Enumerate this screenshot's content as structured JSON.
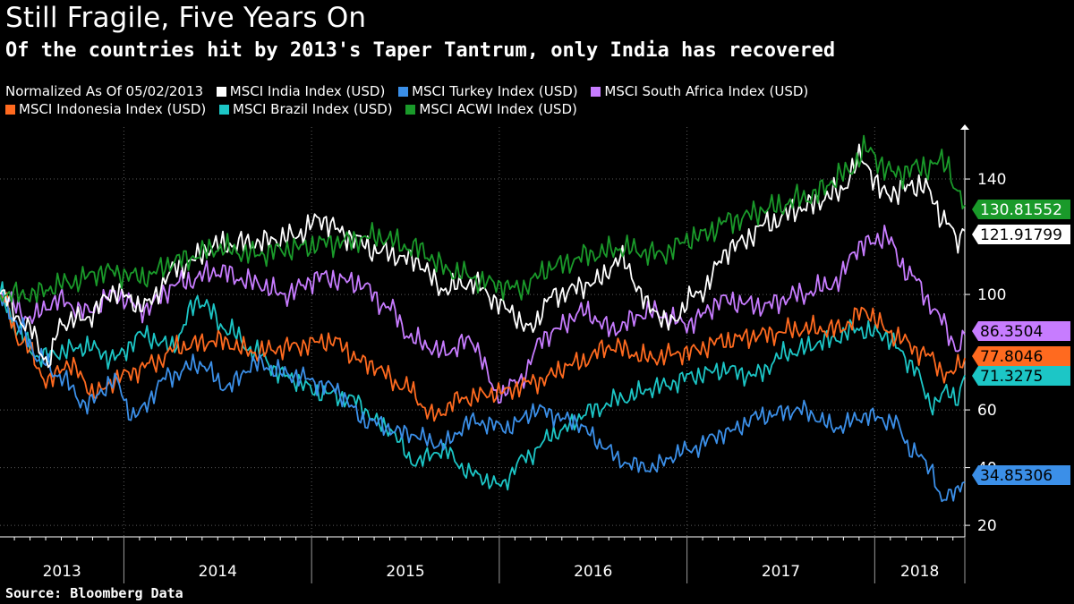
{
  "chart_data": {
    "type": "line",
    "title": "Still Fragile, Five Years On",
    "subtitle": "Of the countries hit by 2013's Taper Tantrum, only India has recovered",
    "legend_header": "Normalized As Of 05/02/2013",
    "source": "Source:  Bloomberg Data",
    "ylim": [
      16,
      158
    ],
    "y_ticks": [
      20,
      40,
      60,
      100,
      140
    ],
    "xlim": [
      2013.34,
      2018.48
    ],
    "x_year_labels": [
      "2013",
      "2014",
      "2015",
      "2016",
      "2017",
      "2018"
    ],
    "series": [
      {
        "name": "MSCI India Index (USD)",
        "color": "#ffffff",
        "end_value": "121.91799",
        "anchors": [
          [
            2013.34,
            100
          ],
          [
            2013.5,
            88
          ],
          [
            2013.6,
            76
          ],
          [
            2013.66,
            90
          ],
          [
            2013.8,
            92
          ],
          [
            2013.95,
            101
          ],
          [
            2014.1,
            96
          ],
          [
            2014.3,
            110
          ],
          [
            2014.5,
            117
          ],
          [
            2014.7,
            118
          ],
          [
            2014.9,
            120
          ],
          [
            2015.05,
            126
          ],
          [
            2015.2,
            120
          ],
          [
            2015.35,
            115
          ],
          [
            2015.55,
            112
          ],
          [
            2015.7,
            102
          ],
          [
            2015.85,
            104
          ],
          [
            2016.05,
            95
          ],
          [
            2016.15,
            88
          ],
          [
            2016.3,
            100
          ],
          [
            2016.5,
            104
          ],
          [
            2016.65,
            112
          ],
          [
            2016.8,
            96
          ],
          [
            2016.9,
            90
          ],
          [
            2017.05,
            100
          ],
          [
            2017.25,
            117
          ],
          [
            2017.45,
            125
          ],
          [
            2017.6,
            130
          ],
          [
            2017.8,
            135
          ],
          [
            2017.93,
            147
          ],
          [
            2018.05,
            135
          ],
          [
            2018.25,
            138
          ],
          [
            2018.38,
            126
          ],
          [
            2018.44,
            118
          ],
          [
            2018.48,
            122
          ]
        ]
      },
      {
        "name": "MSCI Turkey Index (USD)",
        "color": "#3b8fe8",
        "end_value": "34.85306",
        "anchors": [
          [
            2013.34,
            100
          ],
          [
            2013.45,
            88
          ],
          [
            2013.55,
            78
          ],
          [
            2013.65,
            72
          ],
          [
            2013.8,
            62
          ],
          [
            2013.95,
            70
          ],
          [
            2014.05,
            58
          ],
          [
            2014.25,
            72
          ],
          [
            2014.4,
            76
          ],
          [
            2014.55,
            68
          ],
          [
            2014.7,
            76
          ],
          [
            2014.9,
            72
          ],
          [
            2015.1,
            68
          ],
          [
            2015.3,
            56
          ],
          [
            2015.5,
            52
          ],
          [
            2015.7,
            48
          ],
          [
            2015.85,
            56
          ],
          [
            2016.05,
            54
          ],
          [
            2016.2,
            60
          ],
          [
            2016.4,
            56
          ],
          [
            2016.55,
            48
          ],
          [
            2016.65,
            42
          ],
          [
            2016.8,
            40
          ],
          [
            2017.0,
            46
          ],
          [
            2017.2,
            52
          ],
          [
            2017.4,
            58
          ],
          [
            2017.6,
            60
          ],
          [
            2017.8,
            54
          ],
          [
            2017.95,
            58
          ],
          [
            2018.1,
            56
          ],
          [
            2018.2,
            46
          ],
          [
            2018.3,
            40
          ],
          [
            2018.36,
            28
          ],
          [
            2018.42,
            32
          ],
          [
            2018.48,
            35
          ]
        ]
      },
      {
        "name": "MSCI South Africa Index (USD)",
        "color": "#c77cff",
        "end_value": "86.3504",
        "anchors": [
          [
            2013.34,
            100
          ],
          [
            2013.5,
            92
          ],
          [
            2013.65,
            98
          ],
          [
            2013.8,
            94
          ],
          [
            2013.95,
            100
          ],
          [
            2014.1,
            95
          ],
          [
            2014.3,
            104
          ],
          [
            2014.5,
            108
          ],
          [
            2014.7,
            104
          ],
          [
            2014.85,
            100
          ],
          [
            2015.05,
            106
          ],
          [
            2015.25,
            104
          ],
          [
            2015.4,
            96
          ],
          [
            2015.55,
            84
          ],
          [
            2015.7,
            80
          ],
          [
            2015.85,
            84
          ],
          [
            2016.0,
            65
          ],
          [
            2016.1,
            70
          ],
          [
            2016.25,
            86
          ],
          [
            2016.45,
            94
          ],
          [
            2016.6,
            88
          ],
          [
            2016.8,
            94
          ],
          [
            2017.0,
            90
          ],
          [
            2017.2,
            98
          ],
          [
            2017.4,
            96
          ],
          [
            2017.6,
            100
          ],
          [
            2017.8,
            104
          ],
          [
            2017.9,
            116
          ],
          [
            2018.05,
            120
          ],
          [
            2018.2,
            106
          ],
          [
            2018.35,
            92
          ],
          [
            2018.45,
            80
          ],
          [
            2018.48,
            86
          ]
        ]
      },
      {
        "name": "MSCI Indonesia Index (USD)",
        "color": "#ff6a1f",
        "end_value": "77.8046",
        "anchors": [
          [
            2013.34,
            100
          ],
          [
            2013.45,
            84
          ],
          [
            2013.6,
            70
          ],
          [
            2013.7,
            76
          ],
          [
            2013.85,
            66
          ],
          [
            2014.0,
            72
          ],
          [
            2014.15,
            76
          ],
          [
            2014.3,
            82
          ],
          [
            2014.5,
            84
          ],
          [
            2014.7,
            80
          ],
          [
            2014.9,
            82
          ],
          [
            2015.1,
            84
          ],
          [
            2015.3,
            76
          ],
          [
            2015.5,
            68
          ],
          [
            2015.65,
            58
          ],
          [
            2015.8,
            64
          ],
          [
            2016.0,
            66
          ],
          [
            2016.2,
            70
          ],
          [
            2016.4,
            76
          ],
          [
            2016.6,
            82
          ],
          [
            2016.8,
            78
          ],
          [
            2017.0,
            80
          ],
          [
            2017.2,
            84
          ],
          [
            2017.4,
            86
          ],
          [
            2017.6,
            88
          ],
          [
            2017.8,
            88
          ],
          [
            2017.95,
            94
          ],
          [
            2018.1,
            86
          ],
          [
            2018.25,
            80
          ],
          [
            2018.4,
            72
          ],
          [
            2018.48,
            78
          ]
        ]
      },
      {
        "name": "MSCI Brazil Index (USD)",
        "color": "#1cc6c6",
        "end_value": "71.3275",
        "anchors": [
          [
            2013.34,
            100
          ],
          [
            2013.45,
            86
          ],
          [
            2013.55,
            78
          ],
          [
            2013.65,
            80
          ],
          [
            2013.8,
            82
          ],
          [
            2013.95,
            78
          ],
          [
            2014.1,
            86
          ],
          [
            2014.25,
            82
          ],
          [
            2014.4,
            98
          ],
          [
            2014.55,
            88
          ],
          [
            2014.7,
            80
          ],
          [
            2014.85,
            72
          ],
          [
            2015.05,
            66
          ],
          [
            2015.2,
            64
          ],
          [
            2015.4,
            54
          ],
          [
            2015.55,
            42
          ],
          [
            2015.7,
            46
          ],
          [
            2015.85,
            38
          ],
          [
            2016.0,
            34
          ],
          [
            2016.15,
            44
          ],
          [
            2016.3,
            52
          ],
          [
            2016.5,
            60
          ],
          [
            2016.65,
            64
          ],
          [
            2016.85,
            68
          ],
          [
            2017.05,
            72
          ],
          [
            2017.2,
            74
          ],
          [
            2017.35,
            72
          ],
          [
            2017.55,
            80
          ],
          [
            2017.75,
            84
          ],
          [
            2017.9,
            88
          ],
          [
            2018.05,
            86
          ],
          [
            2018.2,
            76
          ],
          [
            2018.3,
            62
          ],
          [
            2018.38,
            66
          ],
          [
            2018.44,
            64
          ],
          [
            2018.48,
            72
          ]
        ]
      },
      {
        "name": "MSCI ACWI Index (USD)",
        "color": "#1a9a2a",
        "end_value": "130.81552",
        "anchors": [
          [
            2013.34,
            100
          ],
          [
            2013.5,
            100
          ],
          [
            2013.7,
            104
          ],
          [
            2013.9,
            108
          ],
          [
            2014.1,
            106
          ],
          [
            2014.3,
            112
          ],
          [
            2014.5,
            116
          ],
          [
            2014.7,
            114
          ],
          [
            2014.9,
            116
          ],
          [
            2015.1,
            118
          ],
          [
            2015.35,
            120
          ],
          [
            2015.55,
            116
          ],
          [
            2015.75,
            108
          ],
          [
            2015.95,
            104
          ],
          [
            2016.1,
            102
          ],
          [
            2016.3,
            110
          ],
          [
            2016.5,
            114
          ],
          [
            2016.65,
            116
          ],
          [
            2016.85,
            114
          ],
          [
            2017.05,
            120
          ],
          [
            2017.25,
            126
          ],
          [
            2017.45,
            130
          ],
          [
            2017.65,
            134
          ],
          [
            2017.85,
            142
          ],
          [
            2017.95,
            150
          ],
          [
            2018.1,
            142
          ],
          [
            2018.25,
            144
          ],
          [
            2018.38,
            146
          ],
          [
            2018.45,
            134
          ],
          [
            2018.48,
            131
          ]
        ]
      }
    ]
  }
}
